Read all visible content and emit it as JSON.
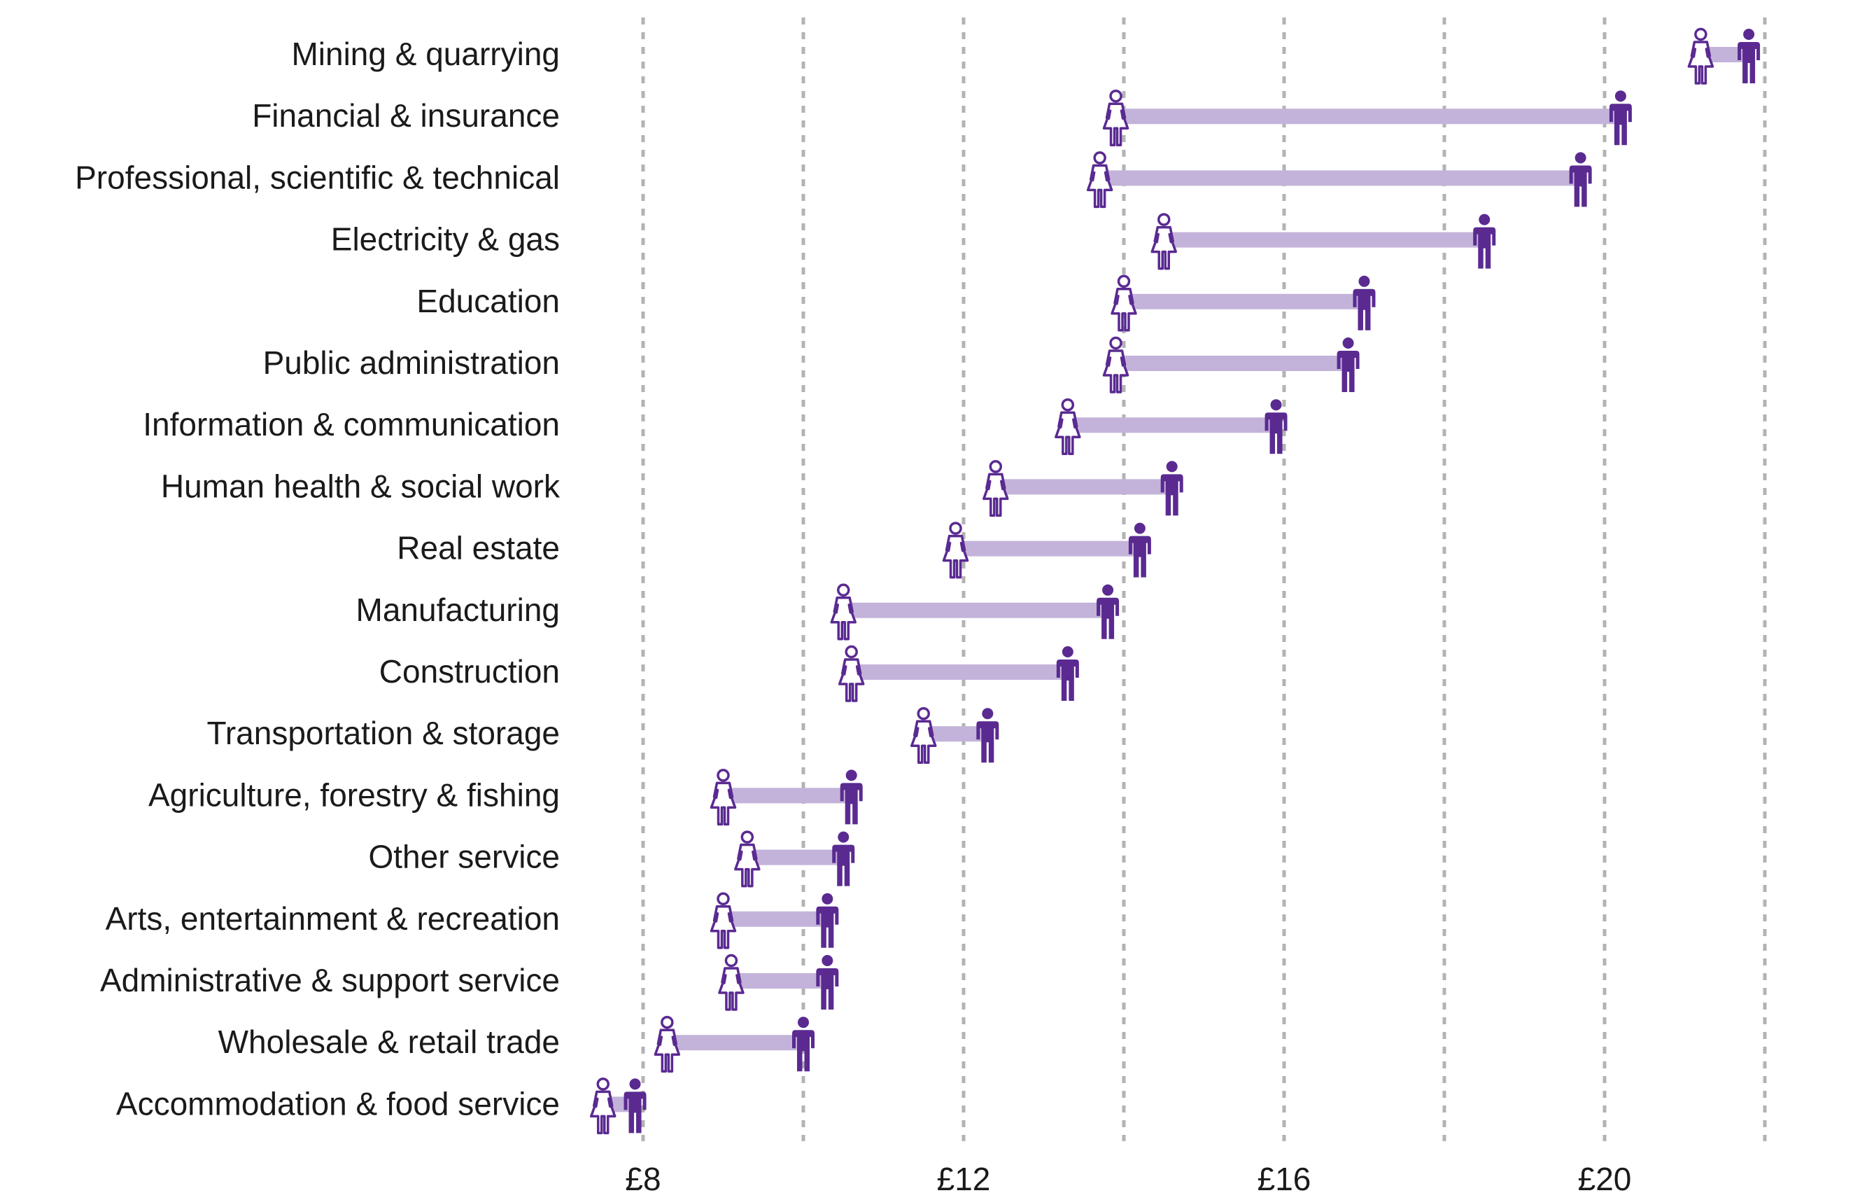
{
  "chart_data": {
    "type": "dumbbell",
    "title": "",
    "xlabel": "",
    "ylabel": "",
    "xlim": [
      7.4,
      22.5
    ],
    "x_ticks": [
      8,
      12,
      16,
      20
    ],
    "x_tick_labels": [
      "£8",
      "£12",
      "£16",
      "£20"
    ],
    "gridlines_at": [
      8,
      10,
      12,
      14,
      16,
      18,
      20,
      22
    ],
    "grid": "vertical dotted",
    "legend": "none",
    "colors": {
      "female_outline": "#5a2a91",
      "male_fill": "#5a2a91",
      "connector": "#c3b3da",
      "grid": "#b3b3b3"
    },
    "categories": [
      "Mining & quarrying",
      "Financial & insurance",
      "Professional, scientific & technical",
      "Electricity & gas",
      "Education",
      "Public administration",
      "Information & communication",
      "Human health & social work",
      "Real estate",
      "Manufacturing",
      "Construction",
      "Transportation & storage",
      "Agriculture, forestry & fishing",
      "Other service",
      "Arts, entertainment & recreation",
      "Administrative & support service",
      "Wholesale & retail trade",
      "Accommodation & food service"
    ],
    "series": [
      {
        "icon": "female",
        "values": [
          21.2,
          13.9,
          13.7,
          14.5,
          14.0,
          13.9,
          13.3,
          12.4,
          11.9,
          10.5,
          10.6,
          11.5,
          9.0,
          9.3,
          9.0,
          9.1,
          8.3,
          7.5
        ]
      },
      {
        "icon": "male",
        "values": [
          21.8,
          20.2,
          19.7,
          18.5,
          17.0,
          16.8,
          15.9,
          14.6,
          14.2,
          13.8,
          13.3,
          12.3,
          10.6,
          10.5,
          10.3,
          10.3,
          10.0,
          7.9
        ]
      }
    ]
  }
}
